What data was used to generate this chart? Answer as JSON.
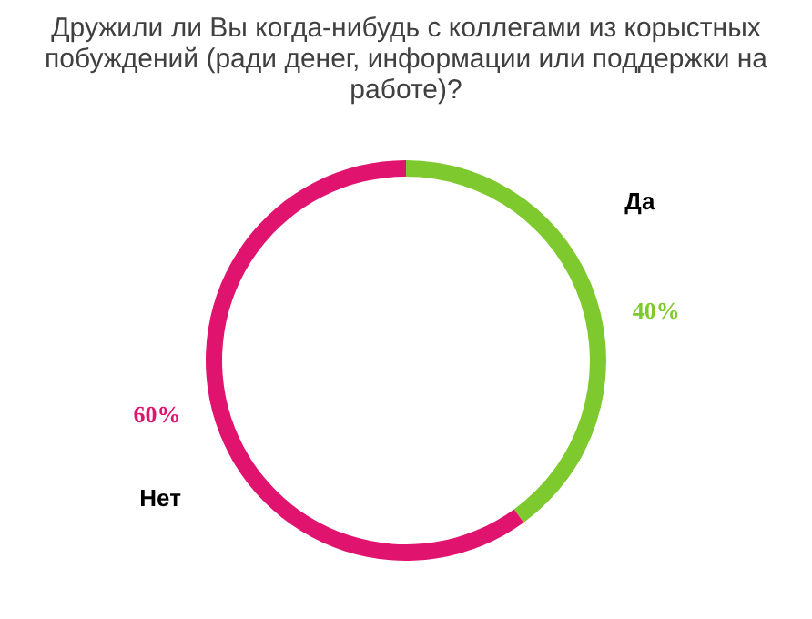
{
  "chart_data": {
    "type": "donut",
    "title": "Дружили ли Вы когда-нибудь с коллегами из корыстных побуждений (ради денег, информации или поддержки на работе)?",
    "categories": [
      "Да",
      "Нет"
    ],
    "values": [
      40,
      60
    ],
    "colors": [
      "#7dc92e",
      "#e0146e"
    ],
    "value_labels": [
      "40%",
      "60%"
    ]
  }
}
